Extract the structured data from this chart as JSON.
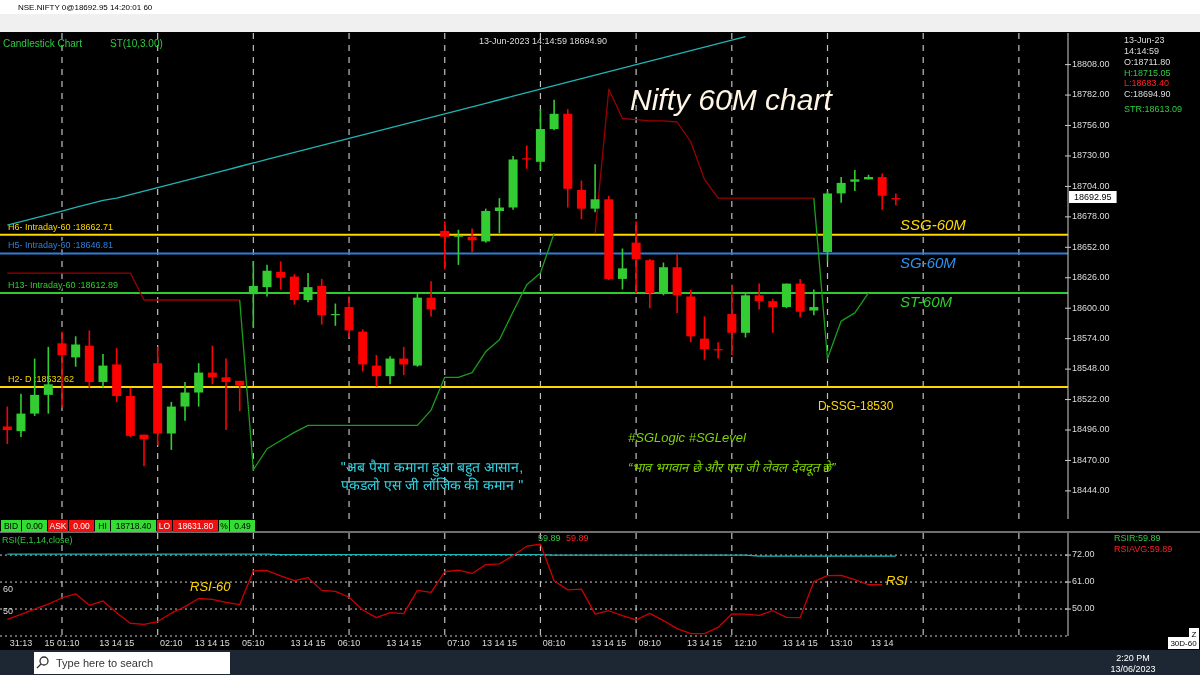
{
  "chart_data": [
    {
      "type": "candlestick",
      "title": "Nifty 60M chart",
      "tick_labels": "y",
      "grid": "x",
      "categories": [
        null,
        null,
        null,
        null,
        null,
        null,
        null,
        null,
        null,
        null,
        null,
        null,
        null,
        null,
        null,
        null,
        null,
        null,
        null,
        null,
        null,
        null,
        null,
        null,
        null,
        null,
        null,
        null,
        null,
        null,
        null,
        null,
        null,
        null,
        null,
        null,
        null,
        null,
        null,
        null,
        null,
        null,
        null,
        null,
        null,
        null,
        null,
        null,
        null,
        null,
        null,
        null,
        null,
        null,
        null,
        null,
        null,
        null,
        null,
        null,
        null,
        null,
        null,
        null,
        null,
        null
      ],
      "ohlc": [
        [
          18499,
          18516,
          18484,
          18496
        ],
        [
          18495,
          18527,
          18490,
          18510
        ],
        [
          18510,
          18557,
          18508,
          18526
        ],
        [
          18526,
          18567,
          18510,
          18535
        ],
        [
          18570,
          18580,
          18515,
          18560
        ],
        [
          18558,
          18576,
          18550,
          18569
        ],
        [
          18568,
          18581,
          18532,
          18537
        ],
        [
          18537,
          18561,
          18532,
          18551
        ],
        [
          18552,
          18566,
          18520,
          18525
        ],
        [
          18525,
          18532,
          18490,
          18491
        ],
        [
          18492,
          18492,
          18465,
          18488
        ],
        [
          18553,
          18567,
          18483,
          18493
        ],
        [
          18493,
          18520,
          18479,
          18516
        ],
        [
          18516,
          18537,
          18504,
          18528
        ],
        [
          18528,
          18553,
          18516,
          18545
        ],
        [
          18545,
          18568,
          18535,
          18541
        ],
        [
          18541,
          18557,
          18496,
          18537
        ],
        [
          18538,
          18538,
          18512,
          18534
        ],
        [
          18612,
          18640,
          18583,
          18619
        ],
        [
          18618,
          18637,
          18610,
          18632
        ],
        [
          18631,
          18640,
          18616,
          18626
        ],
        [
          18627,
          18629,
          18603,
          18607
        ],
        [
          18607,
          18630,
          18605,
          18618
        ],
        [
          18619,
          18625,
          18586,
          18594
        ],
        [
          18594,
          18604,
          18585,
          18595
        ],
        [
          18601,
          18610,
          18575,
          18581
        ],
        [
          18580,
          18582,
          18546,
          18552
        ],
        [
          18551,
          18560,
          18533,
          18542
        ],
        [
          18542,
          18559,
          18535,
          18557
        ],
        [
          18557,
          18567,
          18543,
          18552
        ],
        [
          18551,
          18613,
          18550,
          18609
        ],
        [
          18609,
          18623,
          18593,
          18599
        ],
        [
          18666,
          18674,
          18633,
          18661
        ],
        [
          18661,
          18667,
          18637,
          18662
        ],
        [
          18661,
          18668,
          18648,
          18658
        ],
        [
          18657,
          18685,
          18656,
          18683
        ],
        [
          18683,
          18694,
          18664,
          18686
        ],
        [
          18686,
          18730,
          18684,
          18727
        ],
        [
          18728,
          18739,
          18719,
          18727
        ],
        [
          18725,
          18770,
          18718,
          18753
        ],
        [
          18753,
          18778,
          18752,
          18766
        ],
        [
          18766,
          18770,
          18686,
          18702
        ],
        [
          18701,
          18709,
          18676,
          18685
        ],
        [
          18685,
          18723,
          18682,
          18693
        ],
        [
          18693,
          18696,
          18624,
          18625
        ],
        [
          18625,
          18651,
          18616,
          18634
        ],
        [
          18656,
          18674,
          18613,
          18642
        ],
        [
          18641,
          18642,
          18600,
          18613
        ],
        [
          18613,
          18639,
          18611,
          18635
        ],
        [
          18635,
          18646,
          18596,
          18611
        ],
        [
          18610,
          18616,
          18571,
          18576
        ],
        [
          18574,
          18593,
          18556,
          18565
        ],
        [
          18565,
          18571,
          18557,
          18564
        ],
        [
          18595,
          18620,
          18560,
          18579
        ],
        [
          18579,
          18613,
          18575,
          18611
        ],
        [
          18611,
          18621,
          18599,
          18606
        ],
        [
          18606,
          18608,
          18579,
          18601
        ],
        [
          18601,
          18621,
          18600,
          18621
        ],
        [
          18621,
          18625,
          18592,
          18597
        ],
        [
          18598,
          18616,
          18594,
          18601
        ],
        [
          18648,
          18700,
          18640,
          18698
        ],
        [
          18698,
          18712,
          18690,
          18707
        ],
        [
          18708,
          18718,
          18700,
          18710
        ],
        [
          18710,
          18714,
          18710,
          18712
        ],
        [
          18712,
          18715,
          18684,
          18696
        ],
        [
          18694,
          18698,
          18688,
          18693
        ]
      ],
      "colors": [
        "#ff0000",
        "#33cc33",
        "#33cc33",
        "#33cc33",
        "#ff0000",
        "#33cc33",
        "#ff0000",
        "#33cc33",
        "#ff0000",
        "#ff0000",
        "#ff0000",
        "#ff0000",
        "#33cc33",
        "#33cc33",
        "#33cc33",
        "#ff0000",
        "#ff0000",
        "#ff0000",
        "#33cc33",
        "#33cc33",
        "#ff0000",
        "#ff0000",
        "#33cc33",
        "#ff0000",
        "#33cc33",
        "#ff0000",
        "#ff0000",
        "#ff0000",
        "#33cc33",
        "#ff0000",
        "#33cc33",
        "#ff0000",
        "#ff0000",
        "#33cc33",
        "#ff0000",
        "#33cc33",
        "#33cc33",
        "#33cc33",
        "#ff0000",
        "#33cc33",
        "#33cc33",
        "#ff0000",
        "#ff0000",
        "#33cc33",
        "#ff0000",
        "#33cc33",
        "#ff0000",
        "#ff0000",
        "#33cc33",
        "#ff0000",
        "#ff0000",
        "#ff0000",
        "#ff0000",
        "#ff0000",
        "#33cc33",
        "#ff0000",
        "#ff0000",
        "#33cc33",
        "#ff0000",
        "#33cc33",
        "#33cc33",
        "#33cc33",
        "#33cc33",
        "#33cc33",
        "#ff0000",
        "#ff0000"
      ],
      "ylim": [
        18420,
        18835
      ],
      "yticks": [
        {
          "value": 18808,
          "label": "18808.00"
        },
        {
          "value": 18782,
          "label": "18782.00"
        },
        {
          "value": 18756,
          "label": "18756.00"
        },
        {
          "value": 18730,
          "label": "18730.00"
        },
        {
          "value": 18704,
          "label": "18704.00"
        },
        {
          "value": 18678,
          "label": "18678.00"
        },
        {
          "value": 18652,
          "label": "18652.00"
        },
        {
          "value": 18626,
          "label": "18626.00"
        },
        {
          "value": 18600,
          "label": "18600.00"
        },
        {
          "value": 18574,
          "label": "18574.00"
        },
        {
          "value": 18548,
          "label": "18548.00"
        },
        {
          "value": 18522,
          "label": "18522.00"
        },
        {
          "value": 18496,
          "label": "18496.00"
        },
        {
          "value": 18470,
          "label": "18470.00"
        },
        {
          "value": 18444,
          "label": "18444.00"
        }
      ],
      "series": [
        {
          "type": "line",
          "color": "#1fb5b5",
          "values": [
            18671,
            18674,
            18677,
            18680,
            18683,
            18686,
            18689,
            18692,
            18694,
            18697,
            18700,
            18703,
            18706,
            18709,
            18712,
            18715,
            18718,
            18721,
            18724,
            18727,
            18730,
            18733,
            18736,
            18739,
            18742,
            18745,
            18748,
            18751,
            18754,
            18757,
            18760,
            18763,
            18766,
            18769,
            18772,
            18775,
            18778,
            18781,
            18784,
            18787,
            18790,
            18793,
            18796,
            18799,
            18802,
            18805,
            18808,
            18811,
            18814,
            18817,
            18820,
            18823,
            18826,
            18829,
            18832,
            null,
            null,
            null,
            null,
            null,
            null,
            null,
            null,
            null,
            null,
            null
          ]
        },
        {
          "type": "line",
          "color": "#990000",
          "values": [
            18630,
            18630,
            18630,
            18630,
            18630,
            18630,
            18630,
            18630,
            18630,
            18630,
            18607,
            18607,
            18607,
            18607,
            18607,
            18607,
            18607,
            18607,
            null,
            null,
            null,
            null,
            null,
            null,
            null,
            null,
            null,
            null,
            null,
            null,
            null,
            null,
            null,
            null,
            null,
            null,
            null,
            null,
            null,
            null,
            null,
            null,
            null,
            null,
            null,
            null,
            null,
            null,
            null,
            null,
            null,
            null,
            null,
            null,
            null,
            null,
            null,
            null,
            null,
            null,
            null,
            null,
            null,
            null,
            null,
            null
          ]
        },
        {
          "type": "line",
          "color": "#1a9e1a",
          "values": [
            null,
            null,
            null,
            null,
            null,
            null,
            null,
            null,
            null,
            null,
            null,
            null,
            null,
            null,
            null,
            null,
            null,
            18607,
            18462,
            18480,
            18487,
            18494,
            18500,
            18500,
            18500,
            18500,
            18500,
            18500,
            18500,
            18500,
            18500,
            18513,
            18541,
            18541,
            18545,
            18563,
            18573,
            18597,
            18620,
            18630,
            18664,
            null,
            null,
            null,
            null,
            null,
            null,
            null,
            null,
            null,
            null,
            null,
            null,
            null,
            null,
            null,
            null,
            null,
            null,
            null,
            null,
            null,
            null,
            null,
            null,
            null
          ]
        },
        {
          "type": "line",
          "color": "#990000",
          "values": [
            null,
            null,
            null,
            null,
            null,
            null,
            null,
            null,
            null,
            null,
            null,
            null,
            null,
            null,
            null,
            null,
            null,
            null,
            null,
            null,
            null,
            null,
            null,
            null,
            null,
            null,
            null,
            null,
            null,
            null,
            null,
            null,
            null,
            null,
            null,
            null,
            null,
            null,
            null,
            null,
            null,
            null,
            null,
            18664,
            18787,
            18762,
            18761,
            18760,
            18760,
            18759,
            18742,
            18710,
            18694,
            18694,
            18694,
            18694,
            18694,
            18694,
            18694,
            18694,
            null,
            null,
            null,
            null,
            null,
            null
          ]
        },
        {
          "type": "line",
          "color": "#1a9e1a",
          "values": [
            null,
            null,
            null,
            null,
            null,
            null,
            null,
            null,
            null,
            null,
            null,
            null,
            null,
            null,
            null,
            null,
            null,
            null,
            null,
            null,
            null,
            null,
            null,
            null,
            null,
            null,
            null,
            null,
            null,
            null,
            null,
            null,
            null,
            null,
            null,
            null,
            null,
            null,
            null,
            null,
            null,
            null,
            null,
            null,
            null,
            null,
            null,
            null,
            null,
            null,
            null,
            null,
            null,
            null,
            null,
            null,
            null,
            null,
            null,
            18694,
            18557,
            18589,
            18596,
            18613,
            null,
            null
          ]
        }
      ],
      "ref_lines": [
        {
          "axis": "y",
          "value": 18662.71,
          "label": "H6- Intraday-60 :18662.71",
          "color": "#ffd700"
        },
        {
          "axis": "y",
          "value": 18646.81,
          "label": "H5- Intraday-60 :18646.81",
          "color": "#2f7fd8"
        },
        {
          "axis": "y",
          "value": 18612.89,
          "label": "H13- Intraday-60 :18612.89",
          "color": "#2ecc2e"
        },
        {
          "axis": "y",
          "value": 18532.62,
          "label": "H2- D :18532.62",
          "color": "#ffd700"
        }
      ],
      "annotations": [
        "Candlestick Chart",
        "ST(10,3.00)",
        "13-Jun-2023 14:14:59 18694.90",
        "13-Jun-23",
        "14:14:59",
        "O:18711.80",
        "H:18715.05",
        "L:18683.40",
        "C:18694.90",
        "STR:18613.09",
        "\"अब पैसा कमाना हुआ बहुत आसान,",
        "पकडलो एस जी लॉजिक की कमान \"",
        "#SGLogic  #SGLevel",
        "“भाव भगवान छे और एस जी लेवल देवदूत छे”",
        "BID",
        "0.00",
        "ASK",
        "0.00",
        "HI",
        "18718.40",
        "LO",
        "18631.80",
        "%",
        "0.49",
        "NSE.NIFTY 0@18692.95 14:20:01 60",
        "Type here to search",
        "2:20 PM",
        "13/06/2023",
        "SSG-60M",
        "SG-60M",
        "ST-60M",
        "D-SSG-18530",
        "18692.95"
      ]
    },
    {
      "type": "line",
      "categories": [
        null,
        "31:13",
        null,
        null,
        "15 01:10",
        null,
        null,
        null,
        "13 14 15",
        null,
        null,
        null,
        "02:10",
        null,
        null,
        "13 14 15",
        null,
        null,
        "05:10",
        null,
        null,
        null,
        "13 14 15",
        null,
        null,
        "06:10",
        null,
        null,
        null,
        "13 14 15",
        null,
        null,
        null,
        "07:10",
        null,
        null,
        "13 14 15",
        null,
        null,
        null,
        "08:10",
        null,
        null,
        null,
        "13 14 15",
        null,
        null,
        "09:10",
        null,
        null,
        null,
        "13 14 15",
        null,
        null,
        "12:10",
        null,
        null,
        null,
        "13 14 15",
        null,
        null,
        "13:10",
        null,
        null,
        "13 14",
        null
      ],
      "ylim": [
        39,
        81
      ],
      "yticks": [
        {
          "value": 72,
          "label": "72.00"
        },
        {
          "value": 61,
          "label": "61.00"
        },
        {
          "value": 50,
          "label": "50.00"
        }
      ],
      "series": [
        {
          "color": "#1fb5b5",
          "values": [
            72.4,
            72.4,
            72.4,
            72.4,
            72.4,
            72.4,
            72.4,
            72.4,
            72.4,
            72.4,
            72.4,
            72.4,
            72.4,
            72.4,
            72.4,
            72.4,
            72.4,
            72.4,
            72.4,
            72.4,
            72.2,
            72.2,
            72.2,
            72.2,
            72.2,
            72.2,
            72.2,
            72.2,
            72.2,
            72.2,
            72.2,
            72.2,
            72.2,
            72.2,
            72.2,
            72.2,
            72.2,
            72.2,
            72.2,
            72.2,
            72.0,
            72.0,
            72.0,
            72.0,
            72.0,
            72.0,
            72.0,
            72.0,
            72.0,
            72.0,
            72.0,
            72.0,
            72.0,
            72.0,
            72.0,
            71.6,
            71.6,
            71.6,
            71.6,
            71.6,
            71.6,
            71.6,
            71.6,
            71.6,
            71.6,
            71.6
          ]
        },
        {
          "color": "#cc0000",
          "values": [
            45.8,
            47.8,
            50,
            52,
            54.5,
            56.2,
            51.5,
            53.3,
            48.5,
            44.2,
            43.7,
            44.9,
            48.3,
            51,
            54.3,
            53.9,
            52.7,
            51.8,
            65.5,
            65.7,
            63.5,
            61.6,
            62.8,
            57.6,
            57.2,
            54.8,
            49.6,
            46.5,
            48.5,
            48.1,
            57.6,
            56.8,
            65.2,
            65.9,
            64.5,
            68.1,
            68.4,
            71.8,
            75.6,
            76.5,
            61.5,
            57.8,
            58.1,
            47.9,
            49.3,
            47.3,
            45.6,
            48.2,
            45.3,
            42,
            40,
            40,
            42.5,
            48,
            47.9,
            47.4,
            49.3,
            46.6,
            46.5,
            61.2,
            63.6,
            63.7,
            62,
            59.9,
            59.9,
            null
          ]
        }
      ],
      "grid": true,
      "annotations": [
        "RSI(E,1,14,close)",
        "59.89",
        "59.89",
        "RSIR:59.89",
        "RSIAVG:59.89",
        "60",
        "50",
        "30D-60",
        "Z",
        "RSI-60",
        "RSI"
      ]
    }
  ]
}
